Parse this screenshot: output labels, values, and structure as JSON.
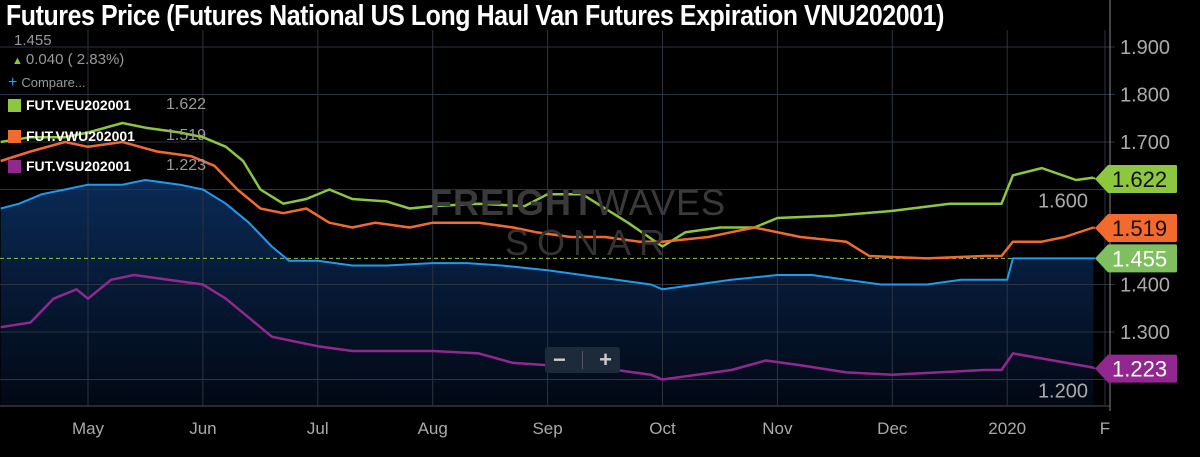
{
  "header": {
    "title": "Futures Price (Futures National US Long Haul Van Futures Expiration VNU202001)",
    "last_value": "1.455",
    "change": "0.040 ( 2.83%)",
    "change_icon": "arrow-up-icon",
    "compare_label": "Compare..."
  },
  "legend": [
    {
      "label": "FUT.VEU202001",
      "value": "1.622",
      "color": "#8dc63f"
    },
    {
      "label": "FUT.VWU202001",
      "value": "1.519",
      "color": "#f26a2e"
    },
    {
      "label": "FUT.VSU202001",
      "value": "1.223",
      "color": "#92278f"
    }
  ],
  "watermark": {
    "line1a": "FREIGHT",
    "line1b": "WAVES",
    "line2": "SONAR"
  },
  "zoom": {
    "minus": "−",
    "plus": "+"
  },
  "chart_data": {
    "type": "line",
    "title": "Futures Price (Futures National US Long Haul Van Futures Expiration VNU202001)",
    "xlabel": "",
    "ylabel": "",
    "x_unit": "month index (5=May 2019, 13=Jan 2020)",
    "xlim": [
      4.24,
      14
    ],
    "ylim": [
      1.165,
      1.995
    ],
    "grid": true,
    "x_ticks": [
      {
        "m": 5,
        "label": "May"
      },
      {
        "m": 6,
        "label": "Jun"
      },
      {
        "m": 7,
        "label": "Jul"
      },
      {
        "m": 8,
        "label": "Aug"
      },
      {
        "m": 9,
        "label": "Sep"
      },
      {
        "m": 10,
        "label": "Oct"
      },
      {
        "m": 11,
        "label": "Nov"
      },
      {
        "m": 12,
        "label": "Dec"
      },
      {
        "m": 13,
        "label": "2020"
      },
      {
        "m": 14,
        "label": "F"
      }
    ],
    "y_ticks": [
      {
        "v": 1.9,
        "label": "1.900"
      },
      {
        "v": 1.8,
        "label": "1.800"
      },
      {
        "v": 1.7,
        "label": "1.700"
      },
      {
        "v": 1.6,
        "label": "1.600"
      },
      {
        "v": 1.4,
        "label": "1.400"
      },
      {
        "v": 1.3,
        "label": "1.300"
      },
      {
        "v": 1.2,
        "label": "1.200"
      }
    ],
    "reference_line": {
      "value": 1.455,
      "color": "#8dc63f"
    },
    "series": [
      {
        "name": "VNU202001",
        "color": "#1e9bf0",
        "area": true,
        "last": "1.455",
        "tag_color": "#7fbf5f",
        "points": [
          [
            4.24,
            1.56
          ],
          [
            4.4,
            1.57
          ],
          [
            4.6,
            1.59
          ],
          [
            4.8,
            1.6
          ],
          [
            5,
            1.61
          ],
          [
            5.3,
            1.61
          ],
          [
            5.5,
            1.62
          ],
          [
            5.8,
            1.61
          ],
          [
            6,
            1.6
          ],
          [
            6.2,
            1.57
          ],
          [
            6.4,
            1.53
          ],
          [
            6.6,
            1.48
          ],
          [
            6.75,
            1.45
          ],
          [
            7,
            1.45
          ],
          [
            7.3,
            1.44
          ],
          [
            7.6,
            1.44
          ],
          [
            8,
            1.445
          ],
          [
            8.3,
            1.445
          ],
          [
            8.6,
            1.44
          ],
          [
            9,
            1.43
          ],
          [
            9.3,
            1.42
          ],
          [
            9.6,
            1.41
          ],
          [
            9.9,
            1.4
          ],
          [
            10,
            1.39
          ],
          [
            10.3,
            1.4
          ],
          [
            10.6,
            1.41
          ],
          [
            11,
            1.42
          ],
          [
            11.3,
            1.42
          ],
          [
            11.6,
            1.41
          ],
          [
            11.9,
            1.4
          ],
          [
            12.3,
            1.4
          ],
          [
            12.6,
            1.41
          ],
          [
            13,
            1.41
          ],
          [
            13.05,
            1.455
          ],
          [
            13.4,
            1.455
          ],
          [
            13.75,
            1.455
          ]
        ]
      },
      {
        "name": "FUT.VEU202001",
        "color": "#8dc63f",
        "last": "1.622",
        "tag_color": "#8dc63f",
        "points": [
          [
            4.24,
            1.7
          ],
          [
            4.5,
            1.71
          ],
          [
            4.8,
            1.71
          ],
          [
            5,
            1.72
          ],
          [
            5.3,
            1.74
          ],
          [
            5.5,
            1.73
          ],
          [
            5.8,
            1.72
          ],
          [
            6,
            1.71
          ],
          [
            6.2,
            1.69
          ],
          [
            6.35,
            1.66
          ],
          [
            6.5,
            1.6
          ],
          [
            6.7,
            1.57
          ],
          [
            6.9,
            1.58
          ],
          [
            7.1,
            1.6
          ],
          [
            7.3,
            1.58
          ],
          [
            7.6,
            1.575
          ],
          [
            7.8,
            1.56
          ],
          [
            8,
            1.565
          ],
          [
            8.4,
            1.57
          ],
          [
            8.8,
            1.565
          ],
          [
            9,
            1.59
          ],
          [
            9.3,
            1.59
          ],
          [
            9.5,
            1.56
          ],
          [
            9.7,
            1.53
          ],
          [
            10,
            1.48
          ],
          [
            10.2,
            1.51
          ],
          [
            10.5,
            1.52
          ],
          [
            10.8,
            1.52
          ],
          [
            11,
            1.54
          ],
          [
            11.5,
            1.545
          ],
          [
            12,
            1.555
          ],
          [
            12.5,
            1.57
          ],
          [
            12.95,
            1.57
          ],
          [
            13.05,
            1.63
          ],
          [
            13.3,
            1.645
          ],
          [
            13.6,
            1.62
          ],
          [
            13.75,
            1.625
          ]
        ]
      },
      {
        "name": "FUT.VWU202001",
        "color": "#f26a2e",
        "last": "1.519",
        "tag_color": "#f26a2e",
        "points": [
          [
            4.24,
            1.66
          ],
          [
            4.5,
            1.68
          ],
          [
            4.8,
            1.7
          ],
          [
            5,
            1.69
          ],
          [
            5.3,
            1.7
          ],
          [
            5.6,
            1.68
          ],
          [
            5.9,
            1.67
          ],
          [
            6.1,
            1.65
          ],
          [
            6.3,
            1.6
          ],
          [
            6.5,
            1.56
          ],
          [
            6.7,
            1.55
          ],
          [
            6.9,
            1.56
          ],
          [
            7.1,
            1.53
          ],
          [
            7.3,
            1.52
          ],
          [
            7.5,
            1.53
          ],
          [
            7.8,
            1.52
          ],
          [
            8,
            1.53
          ],
          [
            8.4,
            1.53
          ],
          [
            8.7,
            1.52
          ],
          [
            8.9,
            1.51
          ],
          [
            9.2,
            1.5
          ],
          [
            9.5,
            1.5
          ],
          [
            9.8,
            1.49
          ],
          [
            10,
            1.49
          ],
          [
            10.4,
            1.5
          ],
          [
            10.6,
            1.51
          ],
          [
            10.8,
            1.52
          ],
          [
            11.2,
            1.5
          ],
          [
            11.6,
            1.49
          ],
          [
            11.8,
            1.46
          ],
          [
            12.3,
            1.455
          ],
          [
            12.8,
            1.46
          ],
          [
            12.95,
            1.46
          ],
          [
            13.05,
            1.49
          ],
          [
            13.3,
            1.49
          ],
          [
            13.5,
            1.5
          ],
          [
            13.75,
            1.52
          ]
        ]
      },
      {
        "name": "FUT.VSU202001",
        "color": "#92278f",
        "last": "1.223",
        "tag_color": "#92278f",
        "points": [
          [
            4.24,
            1.31
          ],
          [
            4.5,
            1.32
          ],
          [
            4.7,
            1.37
          ],
          [
            4.9,
            1.39
          ],
          [
            5,
            1.37
          ],
          [
            5.2,
            1.41
          ],
          [
            5.4,
            1.42
          ],
          [
            5.7,
            1.41
          ],
          [
            6,
            1.4
          ],
          [
            6.2,
            1.37
          ],
          [
            6.4,
            1.33
          ],
          [
            6.6,
            1.29
          ],
          [
            6.8,
            1.28
          ],
          [
            7,
            1.27
          ],
          [
            7.3,
            1.26
          ],
          [
            7.6,
            1.26
          ],
          [
            8,
            1.26
          ],
          [
            8.4,
            1.255
          ],
          [
            8.7,
            1.235
          ],
          [
            9,
            1.23
          ],
          [
            9.3,
            1.225
          ],
          [
            9.6,
            1.22
          ],
          [
            9.9,
            1.21
          ],
          [
            10,
            1.2
          ],
          [
            10.3,
            1.21
          ],
          [
            10.6,
            1.22
          ],
          [
            10.9,
            1.24
          ],
          [
            11.2,
            1.23
          ],
          [
            11.6,
            1.215
          ],
          [
            12,
            1.21
          ],
          [
            12.4,
            1.215
          ],
          [
            12.8,
            1.22
          ],
          [
            12.95,
            1.22
          ],
          [
            13.05,
            1.255
          ],
          [
            13.4,
            1.24
          ],
          [
            13.75,
            1.225
          ]
        ]
      }
    ]
  }
}
